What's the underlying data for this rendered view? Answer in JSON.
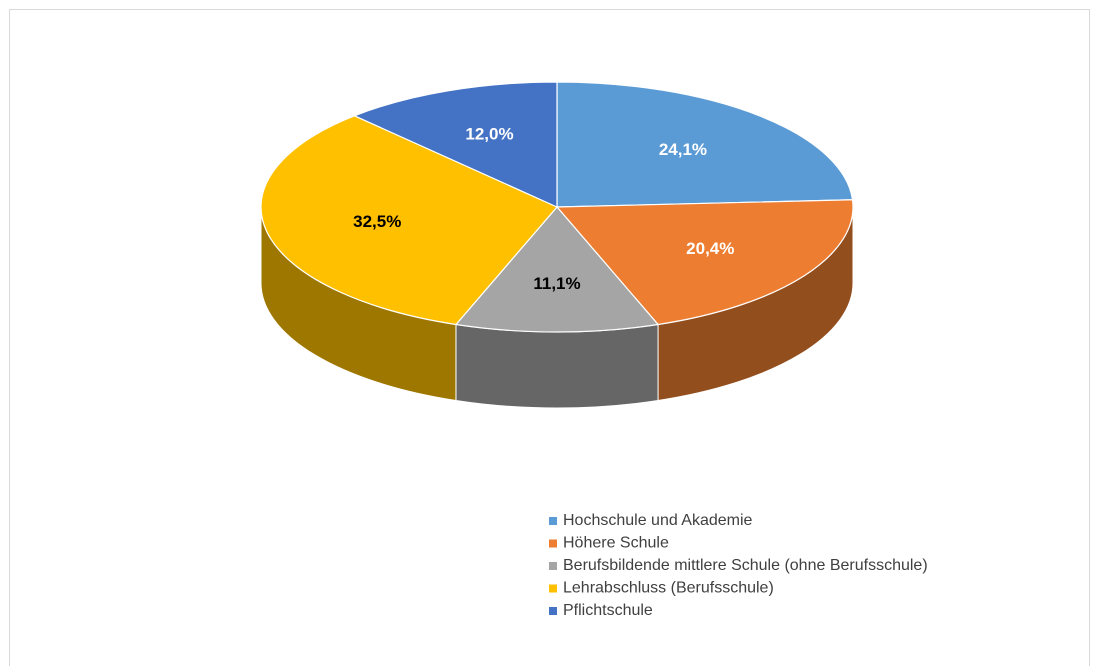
{
  "chart_data": {
    "type": "pie3d",
    "categories": [
      "Hochschule und Akademie",
      "Höhere Schule",
      "Berufsbildende mittlere Schule (ohne Berufsschule)",
      "Lehrabschluss (Berufsschule)",
      "Pflichtschule"
    ],
    "values": [
      24.1,
      20.4,
      11.1,
      32.5,
      12.0
    ],
    "value_labels": [
      "24,1%",
      "20,4%",
      "11,1%",
      "32,5%",
      "12,0%"
    ],
    "colors": [
      "#5b9bd5",
      "#ed7d31",
      "#a5a5a5",
      "#ffc000",
      "#4472c4"
    ],
    "legend": "bottom"
  }
}
